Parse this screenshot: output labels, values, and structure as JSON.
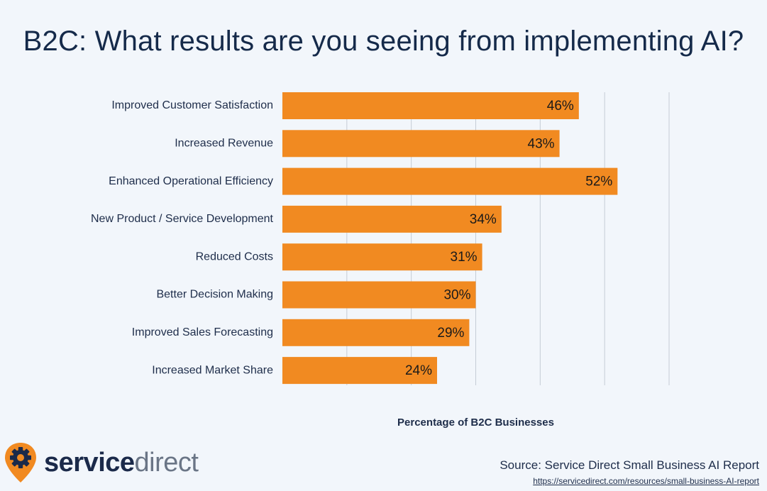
{
  "chart_data": {
    "type": "bar",
    "orientation": "horizontal",
    "title": "B2C: What results are you seeing from implementing AI?",
    "categories": [
      "Improved Customer Satisfaction",
      "Increased Revenue",
      "Enhanced Operational Efficiency",
      "New Product / Service Development",
      "Reduced Costs",
      "Better Decision Making",
      "Improved Sales Forecasting",
      "Increased Market Share"
    ],
    "values": [
      46,
      43,
      52,
      34,
      31,
      30,
      29,
      24
    ],
    "value_labels": [
      "46%",
      "43%",
      "52%",
      "34%",
      "31%",
      "30%",
      "29%",
      "24%"
    ],
    "xlabel": "Percentage of B2C Businesses",
    "ylabel": "",
    "xlim": [
      0,
      60
    ],
    "grid": true,
    "legend": "none",
    "bar_color": "#f18a21",
    "grid_color": "#c5ccd6"
  },
  "footer": {
    "logo_part1": "service",
    "logo_part2": "direct",
    "logo_icon": "gear-location-pin-icon",
    "logo_color": "#f18a21",
    "source": "Source: Service Direct Small Business AI Report",
    "source_url": "https://servicedirect.com/resources/small-business-AI-report"
  }
}
